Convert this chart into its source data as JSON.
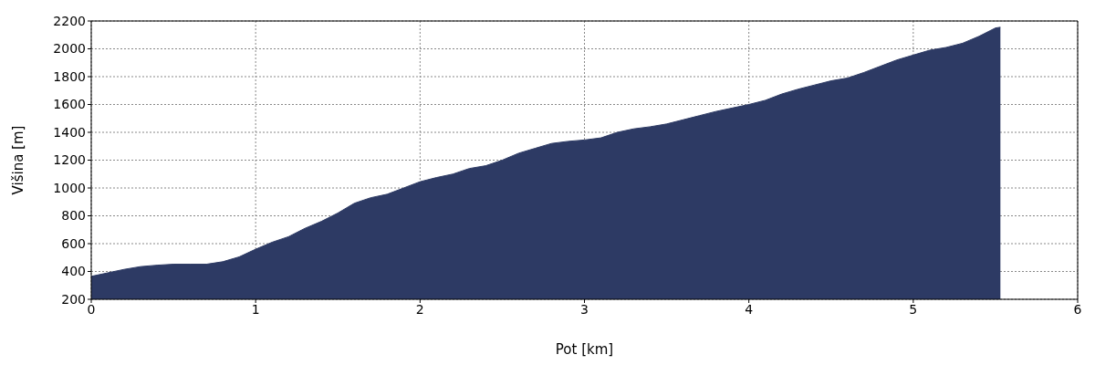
{
  "chart_data": {
    "type": "area",
    "xlabel": "Pot [km]",
    "ylabel": "Višina [m]",
    "x": [
      0,
      0.1,
      0.2,
      0.3,
      0.4,
      0.5,
      0.6,
      0.7,
      0.8,
      0.9,
      1.0,
      1.1,
      1.2,
      1.3,
      1.4,
      1.5,
      1.6,
      1.7,
      1.8,
      1.9,
      2.0,
      2.1,
      2.2,
      2.3,
      2.4,
      2.5,
      2.6,
      2.7,
      2.8,
      2.9,
      3.0,
      3.1,
      3.2,
      3.3,
      3.4,
      3.5,
      3.6,
      3.7,
      3.8,
      3.9,
      4.0,
      4.1,
      4.2,
      4.3,
      4.4,
      4.5,
      4.6,
      4.7,
      4.8,
      4.9,
      5.0,
      5.1,
      5.2,
      5.3,
      5.4,
      5.5,
      5.53
    ],
    "series": [
      {
        "color": "#2d3a64",
        "values": [
          365,
          390,
          415,
          435,
          445,
          452,
          452,
          452,
          470,
          505,
          560,
          610,
          650,
          710,
          760,
          820,
          890,
          930,
          955,
          1000,
          1045,
          1075,
          1100,
          1140,
          1160,
          1200,
          1250,
          1285,
          1320,
          1335,
          1345,
          1360,
          1400,
          1425,
          1440,
          1460,
          1490,
          1520,
          1550,
          1575,
          1600,
          1630,
          1675,
          1710,
          1740,
          1770,
          1790,
          1830,
          1875,
          1920,
          1955,
          1990,
          2010,
          2040,
          2090,
          2150,
          2155
        ]
      }
    ],
    "xlim": [
      0,
      6
    ],
    "xticks": [
      0,
      1,
      2,
      3,
      4,
      5,
      6
    ],
    "ylim": [
      200,
      2200
    ],
    "yticks": [
      200,
      400,
      600,
      800,
      1000,
      1200,
      1400,
      1600,
      1800,
      2000,
      2200
    ],
    "grid": true
  }
}
